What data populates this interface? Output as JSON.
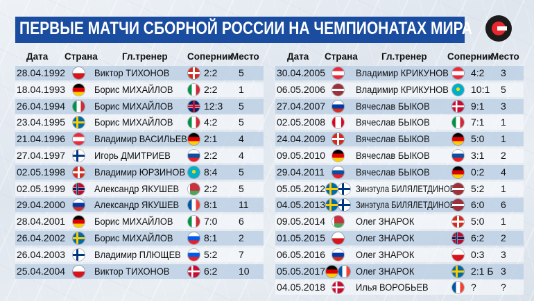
{
  "title": "ПЕРВЫЕ МАТЧИ СБОРНОЙ РОССИИ НА ЧЕМПИОНАТАХ МИРА",
  "headers": {
    "date": "Дата",
    "country": "Страна",
    "coach": "Гл.тренер",
    "opponent": "Соперник",
    "place": "Место"
  },
  "left_rows": [
    {
      "date": "28.04.1992",
      "country_flag": "czech",
      "coach": "Виктор ТИХОНОВ",
      "opp_flag": "switzerland",
      "score": "2:2",
      "place": "5"
    },
    {
      "date": "18.04.1993",
      "country_flag": "germany",
      "coach": "Борис МИХАЙЛОВ",
      "opp_flag": "italy",
      "score": "2:2",
      "place": "1"
    },
    {
      "date": "26.04.1994",
      "country_flag": "italy",
      "coach": "Борис МИХАЙЛОВ",
      "opp_flag": "uk",
      "score": "12:3",
      "place": "5"
    },
    {
      "date": "23.04.1995",
      "country_flag": "sweden",
      "coach": "Борис МИХАЙЛОВ",
      "opp_flag": "italy",
      "score": "4:2",
      "place": "5"
    },
    {
      "date": "21.04.1996",
      "country_flag": "austria",
      "coach": "Владимир ВАСИЛЬЕВ",
      "opp_flag": "germany",
      "score": "2:1",
      "place": "4"
    },
    {
      "date": "27.04.1997",
      "country_flag": "finland",
      "coach": "Игорь ДМИТРИЕВ",
      "opp_flag": "slovakia",
      "score": "2:2",
      "place": "4"
    },
    {
      "date": "02.05.1998",
      "country_flag": "switzerland",
      "coach": "Владимир ЮРЗИНОВ",
      "opp_flag": "kazakhstan",
      "score": "8:4",
      "place": "5"
    },
    {
      "date": "02.05.1999",
      "country_flag": "norway",
      "coach": "Александр ЯКУШЕВ",
      "opp_flag": "belarus",
      "score": "2:2",
      "place": "5"
    },
    {
      "date": "29.04.2000",
      "country_flag": "russia",
      "coach": "Александр ЯКУШЕВ",
      "opp_flag": "france",
      "score": "8:1",
      "place": "11"
    },
    {
      "date": "28.04.2001",
      "country_flag": "germany",
      "coach": "Борис МИХАЙЛОВ",
      "opp_flag": "italy",
      "score": "7:0",
      "place": "6"
    },
    {
      "date": "26.04.2002",
      "country_flag": "sweden",
      "coach": "Борис МИХАЙЛОВ",
      "opp_flag": "slovenia",
      "score": "8:1",
      "place": "2"
    },
    {
      "date": "26.04.2003",
      "country_flag": "finland",
      "coach": "Владимир ПЛЮЩЕВ",
      "opp_flag": "slovenia",
      "score": "5:2",
      "place": "7"
    },
    {
      "date": "25.04.2004",
      "country_flag": "czech",
      "coach": "Виктор ТИХОНОВ",
      "opp_flag": "denmark",
      "score": "6:2",
      "place": "10"
    }
  ],
  "right_rows": [
    {
      "date": "30.04.2005",
      "country_flag": "austria",
      "coach": "Владимир КРИКУНОВ",
      "opp_flag": "austria",
      "score": "4:2",
      "place": "3"
    },
    {
      "date": "06.05.2006",
      "country_flag": "latvia",
      "coach": "Владимир КРИКУНОВ",
      "opp_flag": "kazakhstan",
      "score": "10:1",
      "place": "5"
    },
    {
      "date": "27.04.2007",
      "country_flag": "russia",
      "coach": "Вячеслав БЫКОВ",
      "opp_flag": "denmark",
      "score": "9:1",
      "place": "3"
    },
    {
      "date": "02.05.2008",
      "country_flag": "canada",
      "coach": "Вячеслав БЫКОВ",
      "opp_flag": "italy",
      "score": "7:1",
      "place": "1"
    },
    {
      "date": "24.04.2009",
      "country_flag": "switzerland",
      "coach": "Вячеслав БЫКОВ",
      "opp_flag": "germany",
      "score": "5:0",
      "place": "1"
    },
    {
      "date": "09.05.2010",
      "country_flag": "germany",
      "coach": "Вячеслав БЫКОВ",
      "opp_flag": "slovakia",
      "score": "3:1",
      "place": "2"
    },
    {
      "date": "29.04.2011",
      "country_flag": "slovakia",
      "coach": "Вячеслав БЫКОВ",
      "opp_flag": "germany",
      "score": "0:2",
      "place": "4"
    },
    {
      "date": "05.05.2012",
      "country_flag": "sweden",
      "country_flag2": "finland",
      "coach": "Зинэтула БИЛЯЛЕТДИНОВ",
      "opp_flag": "latvia",
      "score": "5:2",
      "place": "1"
    },
    {
      "date": "04.05.2013",
      "country_flag": "sweden",
      "country_flag2": "finland",
      "coach": "Зинэтула БИЛЯЛЕТДИНОВ",
      "opp_flag": "latvia",
      "score": "6:0",
      "place": "6"
    },
    {
      "date": "09.05.2014",
      "country_flag": "belarus",
      "coach": "Олег ЗНАРОК",
      "opp_flag": "switzerland",
      "score": "5:0",
      "place": "1"
    },
    {
      "date": "01.05.2015",
      "country_flag": "czech",
      "coach": "Олег ЗНАРОК",
      "opp_flag": "norway",
      "score": "6:2",
      "place": "2"
    },
    {
      "date": "06.05.2016",
      "country_flag": "russia",
      "coach": "Олег ЗНАРОК",
      "opp_flag": "czech",
      "score": "0:3",
      "place": "3"
    },
    {
      "date": "05.05.2017",
      "country_flag": "germany",
      "country_flag2": "france",
      "coach": "Олег ЗНАРОК",
      "opp_flag": "sweden",
      "score": "2:1 Б",
      "place": "3"
    },
    {
      "date": "04.05.2018",
      "country_flag": "denmark",
      "coach": "Илья ВОРОБЬЕВ",
      "opp_flag": "france",
      "score": "?",
      "place": "?"
    }
  ]
}
